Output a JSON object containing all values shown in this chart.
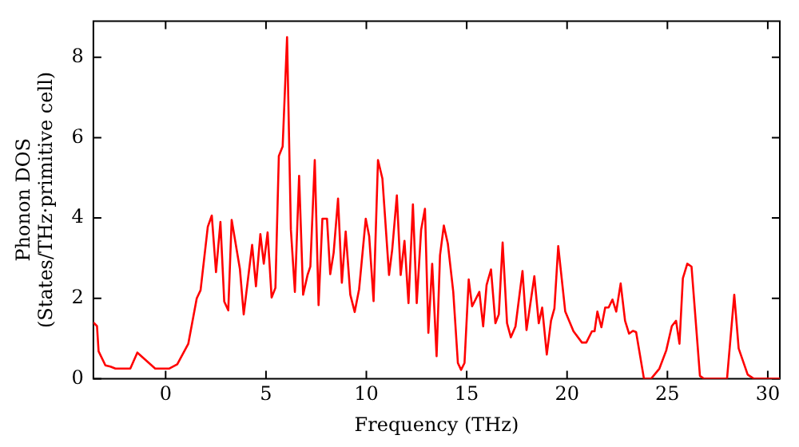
{
  "chart_data": {
    "type": "line",
    "xlabel": "Frequency (THz)",
    "ylabel": "Phonon DOS\n(States/THz·primitive cell)",
    "xlim": [
      -3.6,
      30.6
    ],
    "ylim": [
      0,
      8.9
    ],
    "xticks": [
      0,
      5,
      10,
      15,
      20,
      25,
      30
    ],
    "yticks": [
      0,
      2,
      4,
      6,
      8
    ],
    "grid": false,
    "legend": false,
    "marker": "none",
    "line_style": "solid",
    "series": [
      {
        "color": "#ff0000",
        "x": [
          -3.6,
          -3.42,
          -3.34,
          -3.0,
          -2.75,
          -2.5,
          -1.76,
          -1.41,
          -0.52,
          0.17,
          0.58,
          1.13,
          1.55,
          1.74,
          2.1,
          2.3,
          2.51,
          2.73,
          2.92,
          3.12,
          3.29,
          3.7,
          3.89,
          4.31,
          4.5,
          4.72,
          4.89,
          5.08,
          5.28,
          5.47,
          5.64,
          5.83,
          6.05,
          6.24,
          6.44,
          6.65,
          6.85,
          7.07,
          7.21,
          7.43,
          7.62,
          7.81,
          8.04,
          8.2,
          8.37,
          8.59,
          8.78,
          8.97,
          9.2,
          9.42,
          9.64,
          9.97,
          10.14,
          10.36,
          10.58,
          10.8,
          11.13,
          11.29,
          11.52,
          11.71,
          11.9,
          12.1,
          12.32,
          12.51,
          12.73,
          12.92,
          13.09,
          13.28,
          13.5,
          13.67,
          13.86,
          14.06,
          14.33,
          14.56,
          14.72,
          14.89,
          15.1,
          15.27,
          15.63,
          15.82,
          15.99,
          16.21,
          16.43,
          16.6,
          16.79,
          17.01,
          17.2,
          17.43,
          17.78,
          17.98,
          18.37,
          18.59,
          18.76,
          18.99,
          19.2,
          19.37,
          19.56,
          19.91,
          20.32,
          20.74,
          20.96,
          21.24,
          21.37,
          21.51,
          21.71,
          21.9,
          22.07,
          22.26,
          22.45,
          22.67,
          22.89,
          23.09,
          23.28,
          23.44,
          23.83,
          24.19,
          24.6,
          24.94,
          25.22,
          25.43,
          25.6,
          25.77,
          25.99,
          26.2,
          26.62,
          26.81,
          27.97,
          28.33,
          28.55,
          29.0,
          29.3,
          30.6
        ],
        "values": [
          1.4,
          1.31,
          0.68,
          0.33,
          0.3,
          0.25,
          0.25,
          0.65,
          0.25,
          0.25,
          0.36,
          0.87,
          2.0,
          2.2,
          3.78,
          4.06,
          2.65,
          3.9,
          1.92,
          1.7,
          3.95,
          2.73,
          1.6,
          3.33,
          2.3,
          3.6,
          2.86,
          3.64,
          2.02,
          2.26,
          5.54,
          5.78,
          8.5,
          3.71,
          2.16,
          5.05,
          2.09,
          2.58,
          2.79,
          5.44,
          1.83,
          3.98,
          3.98,
          2.6,
          3.13,
          4.48,
          2.39,
          3.66,
          2.09,
          1.66,
          2.23,
          3.98,
          3.55,
          1.93,
          5.44,
          4.98,
          2.58,
          3.22,
          4.56,
          2.58,
          3.43,
          1.88,
          4.34,
          1.88,
          3.71,
          4.23,
          1.14,
          2.86,
          0.56,
          3.07,
          3.81,
          3.36,
          2.16,
          0.39,
          0.22,
          0.39,
          2.47,
          1.8,
          2.16,
          1.3,
          2.33,
          2.72,
          1.38,
          1.6,
          3.39,
          1.38,
          1.03,
          1.3,
          2.68,
          1.21,
          2.55,
          1.38,
          1.77,
          0.6,
          1.44,
          1.75,
          3.3,
          1.67,
          1.18,
          0.9,
          0.9,
          1.18,
          1.18,
          1.67,
          1.28,
          1.77,
          1.77,
          1.97,
          1.67,
          2.37,
          1.44,
          1.12,
          1.19,
          1.16,
          0,
          0,
          0.25,
          0.7,
          1.31,
          1.44,
          0.87,
          2.5,
          2.86,
          2.79,
          0.07,
          0,
          0,
          2.09,
          0.75,
          0.1,
          0,
          0
        ]
      }
    ]
  }
}
